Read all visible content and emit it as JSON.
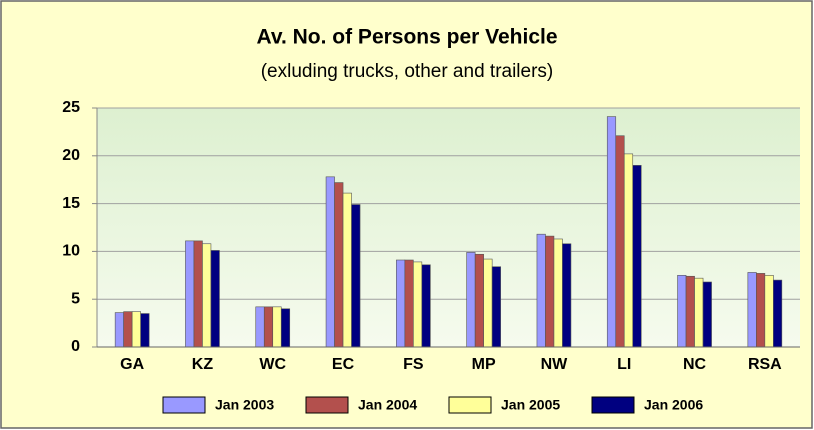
{
  "chart_data": {
    "type": "bar",
    "title": "Av. No. of Persons per Vehicle",
    "subtitle": "(exluding trucks, other and trailers)",
    "categories": [
      "GA",
      "KZ",
      "WC",
      "EC",
      "FS",
      "MP",
      "NW",
      "LI",
      "NC",
      "RSA"
    ],
    "series": [
      {
        "name": "Jan 2003",
        "color": "#9999ff",
        "values": [
          3.6,
          11.1,
          4.2,
          17.8,
          9.1,
          9.9,
          11.8,
          24.1,
          7.5,
          7.8
        ]
      },
      {
        "name": "Jan 2004",
        "color": "#b3504d",
        "values": [
          3.7,
          11.1,
          4.2,
          17.2,
          9.1,
          9.7,
          11.6,
          22.1,
          7.4,
          7.7
        ]
      },
      {
        "name": "Jan 2005",
        "color": "#ffff99",
        "values": [
          3.7,
          10.8,
          4.2,
          16.1,
          8.9,
          9.2,
          11.3,
          20.2,
          7.2,
          7.5
        ]
      },
      {
        "name": "Jan 2006",
        "color": "#000080",
        "values": [
          3.5,
          10.1,
          4.0,
          14.9,
          8.6,
          8.4,
          10.8,
          19.0,
          6.8,
          7.0
        ]
      }
    ],
    "ylim": [
      0,
      25
    ],
    "yticks": [
      0,
      5,
      10,
      15,
      20,
      25
    ],
    "grid": true,
    "legend": "bottom"
  }
}
